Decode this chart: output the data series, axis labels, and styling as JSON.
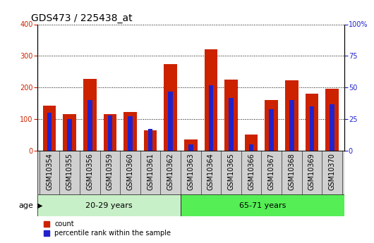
{
  "title": "GDS473 / 225438_at",
  "categories": [
    "GSM10354",
    "GSM10355",
    "GSM10356",
    "GSM10359",
    "GSM10360",
    "GSM10361",
    "GSM10362",
    "GSM10363",
    "GSM10364",
    "GSM10365",
    "GSM10366",
    "GSM10367",
    "GSM10368",
    "GSM10369",
    "GSM10370"
  ],
  "count_values": [
    143,
    115,
    228,
    115,
    122,
    65,
    275,
    35,
    320,
    225,
    50,
    160,
    222,
    180,
    197
  ],
  "percentile_values": [
    30,
    25,
    40,
    28,
    27,
    17,
    47,
    5,
    52,
    42,
    5,
    33,
    40,
    35,
    37
  ],
  "group1_label": "20-29 years",
  "group2_label": "65-71 years",
  "group1_count": 7,
  "group2_count": 8,
  "group_row_label": "age",
  "legend_count": "count",
  "legend_pct": "percentile rank within the sample",
  "bar_color_count": "#cc2200",
  "bar_color_pct": "#2222cc",
  "group1_bg": "#c8f0c8",
  "group2_bg": "#55ee55",
  "tick_label_bg": "#d0d0d0",
  "ylim_left": [
    0,
    400
  ],
  "ylim_right": [
    0,
    100
  ],
  "yticks_left": [
    0,
    100,
    200,
    300,
    400
  ],
  "yticks_right": [
    0,
    25,
    50,
    75,
    100
  ],
  "grid_color": "#000000",
  "plot_bg": "#ffffff",
  "title_fontsize": 10,
  "tick_fontsize": 7,
  "label_fontsize": 8
}
